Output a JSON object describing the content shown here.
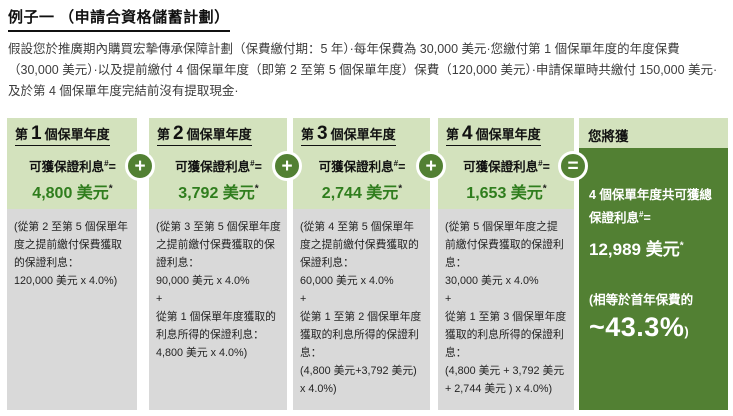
{
  "title": "例子一 （申請合資格儲蓄計劃）",
  "intro": "假設您於推廣期內購買宏摯傳承保障計劃（保費繳付期：5 年）·每年保費為 30,000 美元·您繳付第 1 個保單年度的年度保費（30,000 美元）·以及提前繳付 4 個保單年度（即第 2 至第 5 個保單年度）保費（120,000 美元）·申請保單時共繳付 150,000 美元·及於第 4 個保單年度完結前沒有提取現金·",
  "labels": {
    "interest": "可獲保證利息",
    "interest_sup": "#",
    "eq": "="
  },
  "operators": [
    "+",
    "+",
    "+",
    "="
  ],
  "years": [
    {
      "prefix": "第",
      "num": "1",
      "suffix": "個保單年度",
      "amount": "4,800 美元",
      "amount_sup": "*",
      "detail": [
        "(從第 2 至第 5 個保單年度之提前繳付保費獲取的保證利息：",
        "120,000 美元 x 4.0%)"
      ]
    },
    {
      "prefix": "第",
      "num": "2",
      "suffix": "個保單年度",
      "amount": "3,792 美元",
      "amount_sup": "*",
      "detail": [
        "(從第 3 至第 5 個保單年度之提前繳付保費獲取的保證利息：",
        "90,000 美元 x 4.0%",
        "+",
        "從第 1 個保單年度獲取的利息所得的保證利息：",
        "4,800 美元 x 4.0%)"
      ]
    },
    {
      "prefix": "第",
      "num": "3",
      "suffix": "個保單年度",
      "amount": "2,744 美元",
      "amount_sup": "*",
      "detail": [
        "(從第 4 至第 5 個保單年度之提前繳付保費獲取的保證利息：",
        "60,000 美元 x 4.0%",
        "+",
        "從第 1 至第 2 個保單年度獲取的利息所得的保證利息：",
        "(4,800 美元+3,792 美元) x 4.0%)"
      ]
    },
    {
      "prefix": "第",
      "num": "4",
      "suffix": "個保單年度",
      "amount": "1,653 美元",
      "amount_sup": "*",
      "detail": [
        "(從第 5 個保單年度之提前繳付保費獲取的保證利息：",
        "30,000 美元 x 4.0%",
        "+",
        "從第 1 至第 3 個保單年度獲取的利息所得的保證利息：",
        "(4,800 美元 + 3,792 美元 + 2,744 美元 ) x 4.0%)"
      ]
    }
  ],
  "result": {
    "header": "您將獲",
    "total_label": "4 個保單年度共可獲總保證利息",
    "total_sup": "#",
    "total_eq": "=",
    "total_amount": "12,989 美元",
    "total_amount_sup": "*",
    "note": "(相等於首年保費的",
    "percent": "~43.3%",
    "percent_close": ")"
  },
  "colors": {
    "light_green": "#d3e2bd",
    "dark_green": "#528033",
    "amount_green": "#2f7d1d",
    "detail_gray": "#d9d9d9"
  }
}
